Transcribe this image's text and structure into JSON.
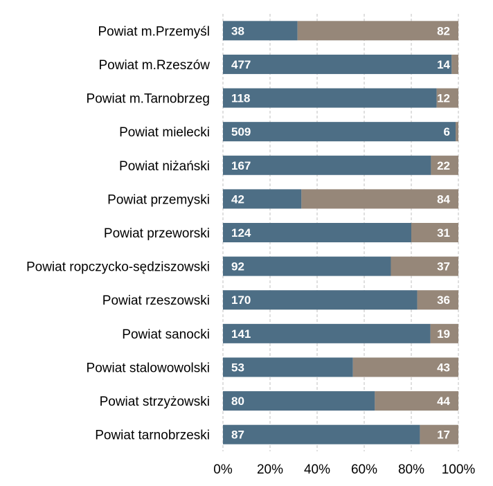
{
  "chart_data": {
    "type": "bar",
    "orientation": "horizontal",
    "stacked": "percent",
    "categories": [
      "Powiat m.Przemyśl",
      "Powiat m.Rzeszów",
      "Powiat m.Tarnobrzeg",
      "Powiat mielecki",
      "Powiat niżański",
      "Powiat przemyski",
      "Powiat przeworski",
      "Powiat ropczycko-sędziszowski",
      "Powiat rzeszowski",
      "Powiat sanocki",
      "Powiat stalowowolski",
      "Powiat strzyżowski",
      "Powiat tarnobrzeski"
    ],
    "series": [
      {
        "values": [
          38,
          477,
          118,
          509,
          167,
          42,
          124,
          92,
          170,
          141,
          53,
          80,
          87
        ],
        "color": "#4d6e85"
      },
      {
        "values": [
          82,
          14,
          12,
          6,
          22,
          84,
          31,
          37,
          36,
          19,
          43,
          44,
          17
        ],
        "color": "#968779"
      }
    ],
    "x_ticks": [
      "0%",
      "20%",
      "40%",
      "60%",
      "80%",
      "100%"
    ],
    "xlim": [
      0,
      100
    ],
    "grid": "vertical dashed",
    "legend": "none",
    "title": "",
    "xlabel": "",
    "ylabel": ""
  }
}
